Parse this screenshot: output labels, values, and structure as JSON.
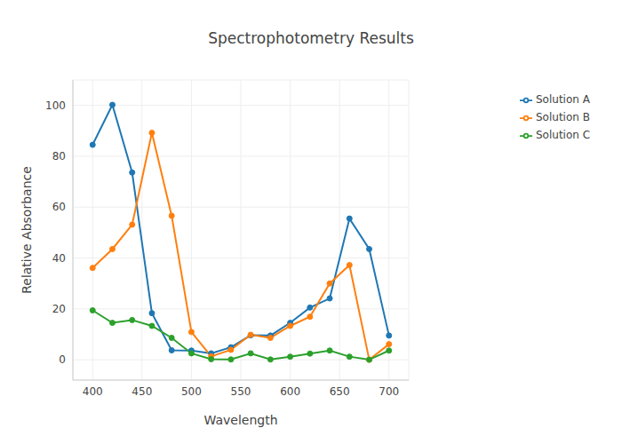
{
  "chart_data": {
    "type": "line",
    "title": "Spectrophotometry Results",
    "x_label": "Wavelength",
    "y_label": "Relative Absorbance",
    "x": [
      400,
      420,
      440,
      460,
      480,
      500,
      520,
      540,
      560,
      580,
      600,
      620,
      640,
      660,
      680,
      700
    ],
    "series": [
      {
        "name": "Solution A",
        "color": "#1f77b4",
        "values": [
          84.5,
          100.2,
          73.6,
          18.3,
          3.7,
          3.6,
          2.5,
          4.9,
          9.6,
          9.5,
          14.5,
          20.5,
          24.1,
          55.5,
          43.5,
          9.5
        ]
      },
      {
        "name": "Solution B",
        "color": "#ff7f0e",
        "values": [
          36.1,
          43.5,
          53.1,
          89.2,
          56.6,
          10.9,
          1.3,
          3.9,
          9.8,
          8.6,
          13.3,
          16.9,
          30.0,
          37.2,
          0.0,
          6.1
        ]
      },
      {
        "name": "Solution C",
        "color": "#2ca02c",
        "values": [
          19.4,
          14.5,
          15.6,
          13.3,
          8.6,
          2.5,
          0.2,
          0.1,
          2.5,
          0.1,
          1.2,
          2.4,
          3.6,
          1.2,
          0.0,
          3.6
        ]
      }
    ],
    "xlim": [
      380,
      720
    ],
    "xticks": [
      400,
      450,
      500,
      550,
      600,
      650,
      700
    ],
    "ylim": [
      -8,
      110
    ],
    "yticks": [
      0,
      20,
      40,
      60,
      80,
      100
    ],
    "grid": true,
    "legend": "right",
    "marker": "circle",
    "line_style": "solid"
  }
}
